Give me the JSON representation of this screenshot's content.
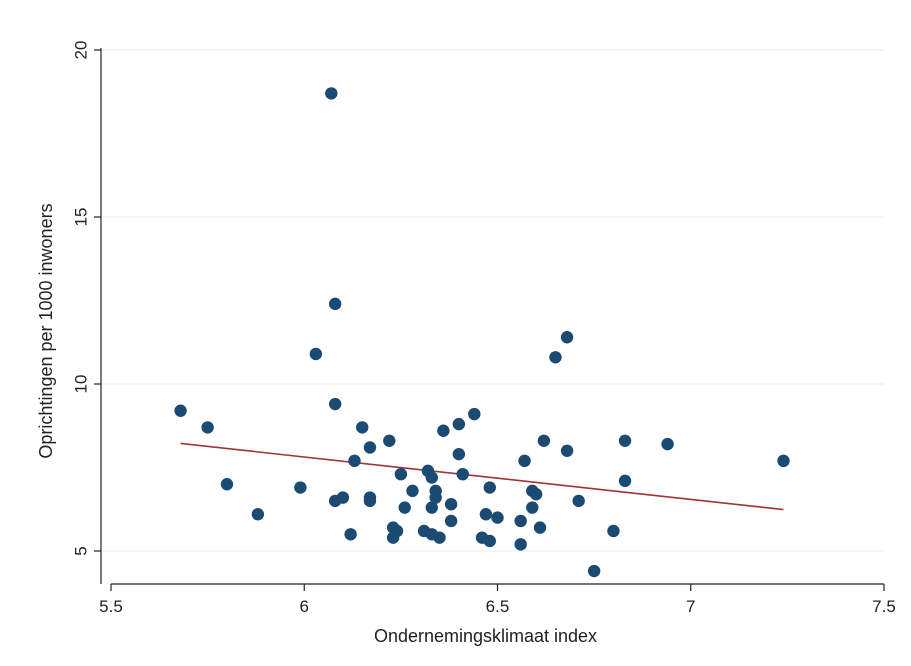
{
  "chart_data": {
    "type": "scatter",
    "xlabel": "Ondernemingsklimaat index",
    "ylabel": "Oprichtingen per 1000 inwoners",
    "xlim": [
      5.5,
      7.5
    ],
    "ylim": [
      4.4,
      20.2
    ],
    "x_ticks": [
      "5.5",
      "6",
      "6.5",
      "7",
      "7.5"
    ],
    "y_ticks": [
      "5",
      "10",
      "15",
      "20"
    ],
    "grid": true,
    "colors": {
      "points": "#1b4a73",
      "fit_line": "#a0333a"
    },
    "points": [
      [
        6.07,
        18.7
      ],
      [
        6.08,
        12.4
      ],
      [
        6.03,
        10.9
      ],
      [
        6.68,
        11.4
      ],
      [
        6.65,
        10.8
      ],
      [
        6.08,
        9.4
      ],
      [
        5.68,
        9.2
      ],
      [
        5.75,
        8.7
      ],
      [
        6.15,
        8.7
      ],
      [
        6.44,
        9.1
      ],
      [
        6.4,
        8.8
      ],
      [
        6.36,
        8.6
      ],
      [
        6.22,
        8.3
      ],
      [
        6.17,
        8.1
      ],
      [
        6.62,
        8.3
      ],
      [
        6.68,
        8.0
      ],
      [
        6.83,
        8.3
      ],
      [
        6.94,
        8.2
      ],
      [
        6.4,
        7.9
      ],
      [
        6.13,
        7.7
      ],
      [
        6.57,
        7.7
      ],
      [
        7.24,
        7.7
      ],
      [
        6.32,
        7.4
      ],
      [
        6.25,
        7.3
      ],
      [
        6.33,
        7.2
      ],
      [
        6.41,
        7.3
      ],
      [
        6.83,
        7.1
      ],
      [
        5.8,
        7.0
      ],
      [
        5.99,
        6.9
      ],
      [
        6.28,
        6.8
      ],
      [
        6.34,
        6.8
      ],
      [
        6.48,
        6.9
      ],
      [
        6.59,
        6.8
      ],
      [
        6.6,
        6.7
      ],
      [
        6.34,
        6.6
      ],
      [
        6.1,
        6.6
      ],
      [
        6.17,
        6.6
      ],
      [
        6.08,
        6.5
      ],
      [
        6.17,
        6.5
      ],
      [
        6.71,
        6.5
      ],
      [
        6.38,
        6.4
      ],
      [
        6.26,
        6.3
      ],
      [
        6.33,
        6.3
      ],
      [
        6.59,
        6.3
      ],
      [
        5.88,
        6.1
      ],
      [
        6.47,
        6.1
      ],
      [
        6.5,
        6.0
      ],
      [
        6.38,
        5.9
      ],
      [
        6.56,
        5.9
      ],
      [
        6.23,
        5.7
      ],
      [
        6.61,
        5.7
      ],
      [
        6.24,
        5.6
      ],
      [
        6.31,
        5.6
      ],
      [
        6.8,
        5.6
      ],
      [
        6.12,
        5.5
      ],
      [
        6.33,
        5.5
      ],
      [
        6.23,
        5.4
      ],
      [
        6.35,
        5.4
      ],
      [
        6.46,
        5.4
      ],
      [
        6.48,
        5.3
      ],
      [
        6.56,
        5.2
      ],
      [
        6.75,
        4.4
      ]
    ],
    "fit_line": {
      "x": [
        5.68,
        7.24
      ],
      "y": [
        8.22,
        6.24
      ]
    }
  }
}
